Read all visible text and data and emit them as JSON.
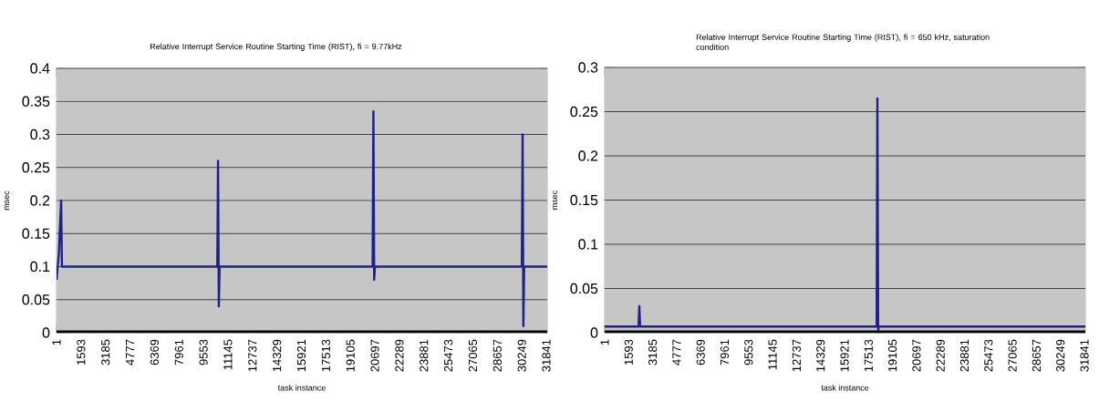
{
  "chart_data": [
    {
      "type": "line",
      "title": "Relative Interrupt Service Routine Starting Time (RIST), fi = 9.77kHz",
      "xlabel": "task instance",
      "ylabel": "msec",
      "grid": "y",
      "xlim": [
        1,
        31900
      ],
      "xticks": [
        1,
        1593,
        3185,
        4777,
        6369,
        7961,
        9553,
        11145,
        12737,
        14329,
        15921,
        17513,
        19105,
        20697,
        22289,
        23881,
        25473,
        27065,
        28657,
        30249,
        31841
      ],
      "ylim": [
        0,
        0.4
      ],
      "yticks": [
        0,
        0.05,
        0.1,
        0.15,
        0.2,
        0.25,
        0.3,
        0.35,
        0.4
      ],
      "series": [
        {
          "color": "#000000",
          "x": [
            1,
            31900
          ],
          "values": [
            0,
            0
          ]
        },
        {
          "color": "#20208a",
          "x": [
            1,
            150,
            300,
            350,
            10450,
            10500,
            10550,
            10600,
            20550,
            20600,
            20650,
            20700,
            30250,
            30300,
            30350,
            30400,
            31900
          ],
          "values": [
            0.08,
            0.12,
            0.2,
            0.1,
            0.1,
            0.26,
            0.04,
            0.1,
            0.1,
            0.335,
            0.08,
            0.1,
            0.1,
            0.3,
            0.01,
            0.1,
            0.1
          ]
        }
      ]
    },
    {
      "type": "line",
      "title": "Relative Interrupt Service Routine Starting Time (RIST), fi = 650 kHz, saturation condition",
      "xlabel": "task instance",
      "ylabel": "msec",
      "grid": "y",
      "xlim": [
        1,
        31900
      ],
      "xticks": [
        1,
        1593,
        3185,
        4777,
        6369,
        7961,
        9553,
        11145,
        12737,
        14329,
        15921,
        17513,
        19105,
        20697,
        22289,
        23881,
        25473,
        27065,
        28657,
        30249,
        31841
      ],
      "ylim": [
        0,
        0.3
      ],
      "yticks": [
        0,
        0.05,
        0.1,
        0.15,
        0.2,
        0.25,
        0.3
      ],
      "series": [
        {
          "color": "#000000",
          "x": [
            1,
            31900
          ],
          "values": [
            0,
            0
          ]
        },
        {
          "color": "#20208a",
          "x": [
            1,
            2250,
            2300,
            2350,
            18050,
            18100,
            18150,
            18200,
            31900
          ],
          "values": [
            0.007,
            0.007,
            0.03,
            0.007,
            0.007,
            0.265,
            0.003,
            0.007,
            0.007
          ]
        }
      ]
    }
  ]
}
